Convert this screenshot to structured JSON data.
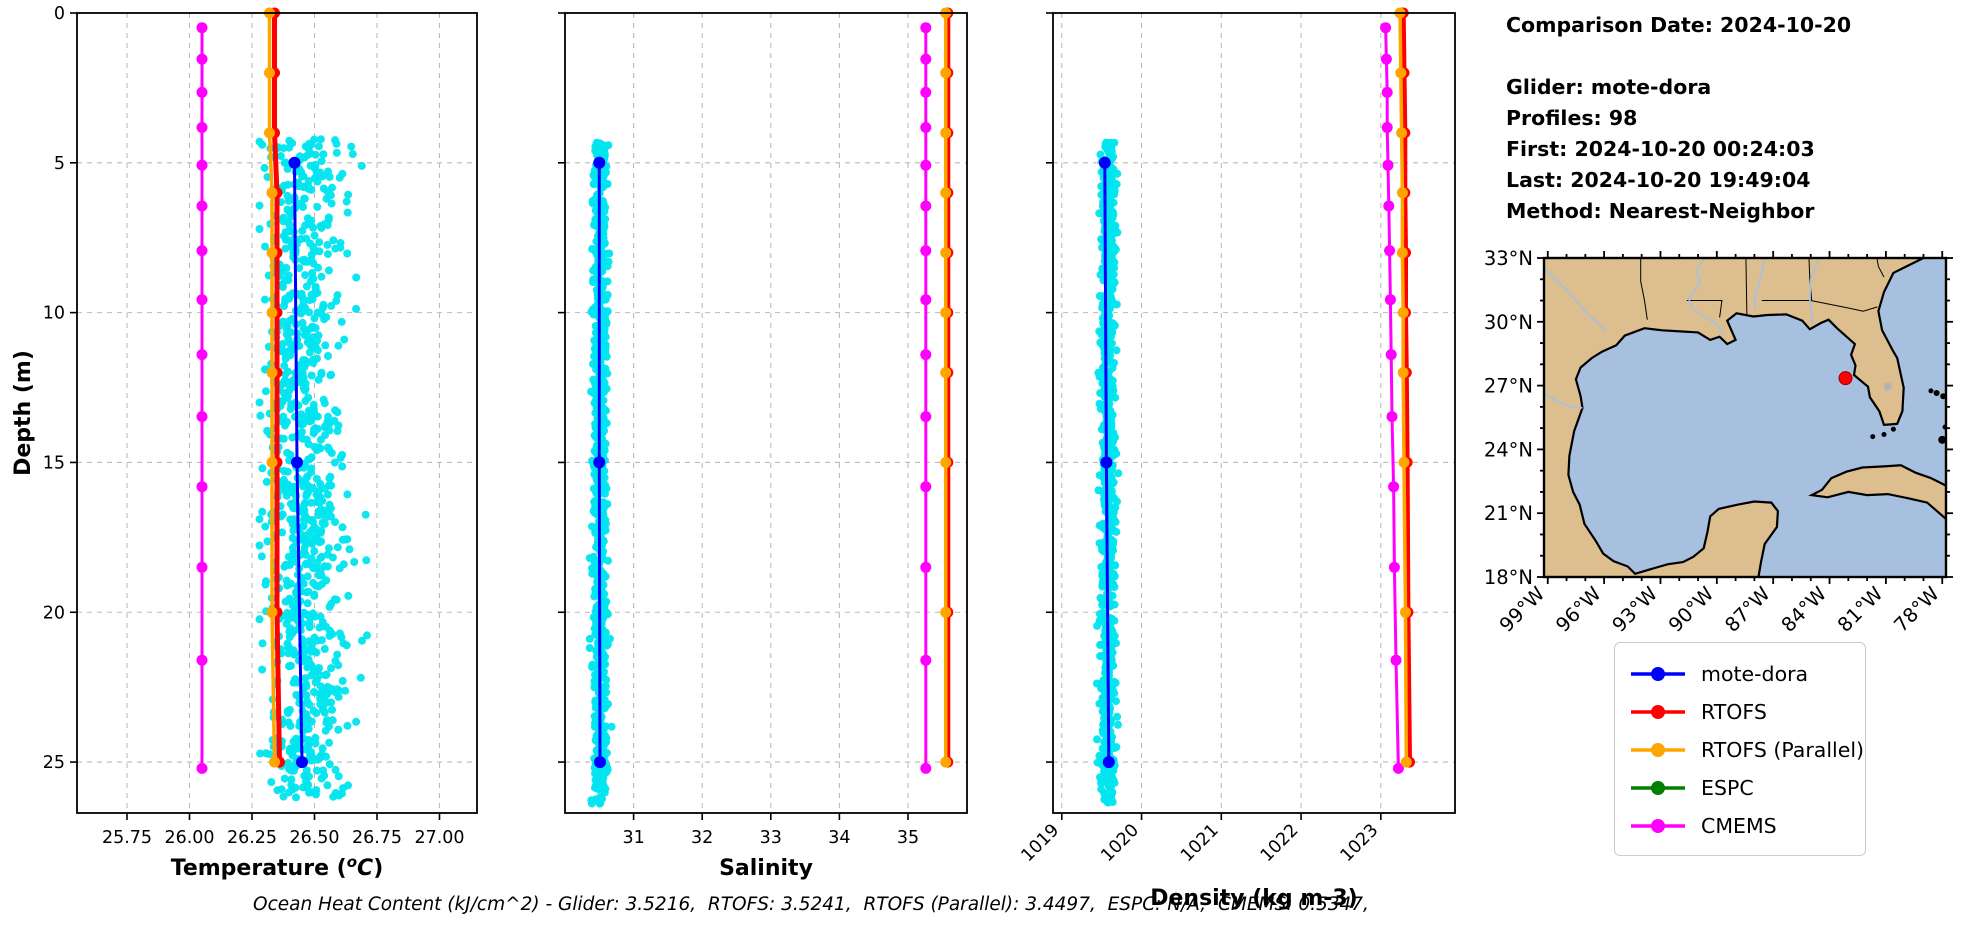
{
  "header": {
    "comparison_date": "Comparison Date: 2024-10-20",
    "glider": "Glider: mote-dora",
    "profiles": "Profiles: 98",
    "first": "First: 2024-10-20 00:24:03",
    "last": "Last: 2024-10-20 19:49:04",
    "method": "Method: Nearest-Neighbor"
  },
  "footer": {
    "ohc": "Ocean Heat Content (kJ/cm^2) - Glider: 3.5216,  RTOFS: 3.5241,  RTOFS (Parallel): 3.4497,  ESPC: N/A,  CMEMS: 0.5347,"
  },
  "legend": {
    "items": [
      {
        "label": "mote-dora",
        "color": "#0000FF"
      },
      {
        "label": "RTOFS",
        "color": "#FF0000"
      },
      {
        "label": "RTOFS (Parallel)",
        "color": "#FFA500"
      },
      {
        "label": "ESPC",
        "color": "#008000"
      },
      {
        "label": "CMEMS",
        "color": "#FF00FF"
      }
    ]
  },
  "colors": {
    "glider_scatter": "#00E5EE",
    "grid": "#bbbbbb",
    "spine": "#000000"
  },
  "chart_data": [
    {
      "id": "temperature",
      "type": "profile",
      "xlabel": "Temperature (°C)",
      "ylabel": "Depth (m)",
      "xlim": [
        25.55,
        27.15
      ],
      "xticks": [
        25.75,
        26.0,
        26.25,
        26.5,
        26.75,
        27.0
      ],
      "xtick_labels": [
        "25.75",
        "26.00",
        "26.25",
        "26.50",
        "26.75",
        "27.00"
      ],
      "ylim": [
        0,
        26.7
      ],
      "yticks": [
        0,
        5,
        10,
        15,
        20,
        25
      ],
      "ytick_labels": [
        "0",
        "5",
        "10",
        "15",
        "20",
        "25"
      ],
      "show_yticklabels": true,
      "rotate_xticks": false,
      "grid": true,
      "scatter": {
        "name": "glider-raw-points",
        "color": "#00E5EE",
        "n": 950,
        "seed": 7,
        "center": 26.46,
        "sd": 0.08,
        "min": 26.28,
        "max": 26.71,
        "dmin": 4.2,
        "dmax": 26.3
      },
      "series": [
        {
          "name": "CMEMS",
          "color": "#FF00FF",
          "lw": 3,
          "ms": 5.5,
          "depths": [
            0.49,
            1.54,
            2.65,
            3.82,
            5.08,
            6.44,
            7.93,
            9.57,
            11.4,
            13.47,
            15.81,
            18.5,
            21.6,
            25.21
          ],
          "values": [
            26.05,
            26.05,
            26.05,
            26.05,
            26.05,
            26.05,
            26.05,
            26.05,
            26.05,
            26.05,
            26.05,
            26.05,
            26.05,
            26.05
          ]
        },
        {
          "name": "RTOFS",
          "color": "#FF0000",
          "lw": 5,
          "ms": 5.5,
          "depths": [
            0,
            2,
            4,
            6,
            8,
            10,
            12,
            15,
            20,
            25
          ],
          "values": [
            26.34,
            26.34,
            26.34,
            26.35,
            26.35,
            26.35,
            26.35,
            26.35,
            26.35,
            26.36
          ]
        },
        {
          "name": "RTOFS (Parallel)",
          "color": "#FFA500",
          "lw": 3.5,
          "ms": 5.5,
          "depths": [
            0,
            2,
            4,
            6,
            8,
            10,
            12,
            15,
            20,
            25
          ],
          "values": [
            26.32,
            26.32,
            26.32,
            26.33,
            26.33,
            26.33,
            26.33,
            26.33,
            26.33,
            26.34
          ]
        },
        {
          "name": "mote-dora",
          "color": "#0000FF",
          "lw": 3,
          "ms": 6,
          "depths": [
            5,
            15,
            25
          ],
          "values": [
            26.42,
            26.43,
            26.45
          ]
        }
      ]
    },
    {
      "id": "salinity",
      "type": "profile",
      "xlabel": "Salinity",
      "xlim": [
        30.0,
        35.86
      ],
      "xticks": [
        31,
        32,
        33,
        34,
        35
      ],
      "xtick_labels": [
        "31",
        "32",
        "33",
        "34",
        "35"
      ],
      "ylim": [
        0,
        26.7
      ],
      "yticks": [
        0,
        5,
        10,
        15,
        20,
        25
      ],
      "ytick_labels": [
        "0",
        "5",
        "10",
        "15",
        "20",
        "25"
      ],
      "show_yticklabels": false,
      "rotate_xticks": false,
      "grid": true,
      "scatter": {
        "name": "glider-raw-points",
        "color": "#00E5EE",
        "n": 900,
        "seed": 11,
        "center": 30.51,
        "sd": 0.05,
        "min": 30.36,
        "max": 30.68,
        "dmin": 4.3,
        "dmax": 26.4
      },
      "series": [
        {
          "name": "CMEMS",
          "color": "#FF00FF",
          "lw": 3,
          "ms": 5.5,
          "depths": [
            0.49,
            1.54,
            2.65,
            3.82,
            5.08,
            6.44,
            7.93,
            9.57,
            11.4,
            13.47,
            15.81,
            18.5,
            21.6,
            25.21
          ],
          "values": [
            35.26,
            35.26,
            35.26,
            35.26,
            35.26,
            35.26,
            35.26,
            35.26,
            35.26,
            35.26,
            35.26,
            35.26,
            35.26,
            35.26
          ]
        },
        {
          "name": "RTOFS",
          "color": "#FF0000",
          "lw": 5,
          "ms": 5.5,
          "depths": [
            0,
            2,
            4,
            6,
            8,
            10,
            12,
            15,
            20,
            25
          ],
          "values": [
            35.58,
            35.58,
            35.58,
            35.58,
            35.58,
            35.58,
            35.58,
            35.58,
            35.58,
            35.58
          ]
        },
        {
          "name": "RTOFS (Parallel)",
          "color": "#FFA500",
          "lw": 3.5,
          "ms": 5.5,
          "depths": [
            0,
            2,
            4,
            6,
            8,
            10,
            12,
            15,
            20,
            25
          ],
          "values": [
            35.55,
            35.55,
            35.55,
            35.55,
            35.55,
            35.55,
            35.55,
            35.55,
            35.55,
            35.55
          ]
        },
        {
          "name": "mote-dora",
          "color": "#0000FF",
          "lw": 3,
          "ms": 6,
          "depths": [
            5,
            15,
            25
          ],
          "values": [
            30.5,
            30.5,
            30.51
          ]
        }
      ]
    },
    {
      "id": "density",
      "type": "profile",
      "xlabel": "Density (kg m-3)",
      "xlim": [
        1018.89,
        1023.93
      ],
      "xticks": [
        1019,
        1020,
        1021,
        1022,
        1023
      ],
      "xtick_labels": [
        "1019",
        "1020",
        "1021",
        "1022",
        "1023"
      ],
      "ylim": [
        0,
        26.7
      ],
      "yticks": [
        0,
        5,
        10,
        15,
        20,
        25
      ],
      "ytick_labels": [
        "0",
        "5",
        "10",
        "15",
        "20",
        "25"
      ],
      "show_yticklabels": false,
      "rotate_xticks": true,
      "grid": true,
      "scatter": {
        "name": "glider-raw-points",
        "color": "#00E5EE",
        "n": 900,
        "seed": 13,
        "center": 1019.58,
        "sd": 0.045,
        "min": 1019.44,
        "max": 1019.72,
        "dmin": 4.3,
        "dmax": 26.4
      },
      "series": [
        {
          "name": "CMEMS",
          "color": "#FF00FF",
          "lw": 3,
          "ms": 5.5,
          "depths": [
            0.49,
            1.54,
            2.65,
            3.82,
            5.08,
            6.44,
            7.93,
            9.57,
            11.4,
            13.47,
            15.81,
            18.5,
            21.6,
            25.21
          ],
          "values": [
            1023.06,
            1023.07,
            1023.08,
            1023.08,
            1023.09,
            1023.1,
            1023.11,
            1023.12,
            1023.13,
            1023.14,
            1023.16,
            1023.17,
            1023.19,
            1023.22
          ]
        },
        {
          "name": "RTOFS",
          "color": "#FF0000",
          "lw": 5,
          "ms": 5.5,
          "depths": [
            0,
            2,
            4,
            6,
            8,
            10,
            12,
            15,
            20,
            25
          ],
          "values": [
            1023.28,
            1023.29,
            1023.3,
            1023.3,
            1023.31,
            1023.31,
            1023.32,
            1023.33,
            1023.34,
            1023.36
          ]
        },
        {
          "name": "RTOFS (Parallel)",
          "color": "#FFA500",
          "lw": 3.5,
          "ms": 5.5,
          "depths": [
            0,
            2,
            4,
            6,
            8,
            10,
            12,
            15,
            20,
            25
          ],
          "values": [
            1023.24,
            1023.25,
            1023.26,
            1023.27,
            1023.27,
            1023.28,
            1023.28,
            1023.29,
            1023.31,
            1023.32
          ]
        },
        {
          "name": "mote-dora",
          "color": "#0000FF",
          "lw": 3,
          "ms": 6,
          "depths": [
            5,
            15,
            25
          ],
          "values": [
            1019.54,
            1019.56,
            1019.59
          ]
        }
      ]
    },
    {
      "id": "gulf-map",
      "type": "map",
      "extent": {
        "lon_min": -99.2,
        "lon_max": -77.8,
        "lat_min": 18,
        "lat_max": 33
      },
      "lat_ticks": [
        {
          "value": 33,
          "label": "33°N"
        },
        {
          "value": 30,
          "label": "30°N"
        },
        {
          "value": 27,
          "label": "27°N"
        },
        {
          "value": 24,
          "label": "24°N"
        },
        {
          "value": 21,
          "label": "21°N"
        },
        {
          "value": 18,
          "label": "18°N"
        }
      ],
      "lon_ticks": [
        {
          "value": -99,
          "label": "99°W"
        },
        {
          "value": -96,
          "label": "96°W"
        },
        {
          "value": -93,
          "label": "93°W"
        },
        {
          "value": -90,
          "label": "90°W"
        },
        {
          "value": -87,
          "label": "87°W"
        },
        {
          "value": -84,
          "label": "84°W"
        },
        {
          "value": -81,
          "label": "81°W"
        },
        {
          "value": -78,
          "label": "78°W"
        }
      ],
      "marker": {
        "lon": -83.15,
        "lat": 27.35,
        "color": "#FF0000"
      },
      "land_color": "#DDBE8E",
      "ocean_color": "#A7C0DF",
      "river_color": "#9DC3E6",
      "lake_color": "#b3b3b3",
      "coast_color": "#000000"
    }
  ]
}
